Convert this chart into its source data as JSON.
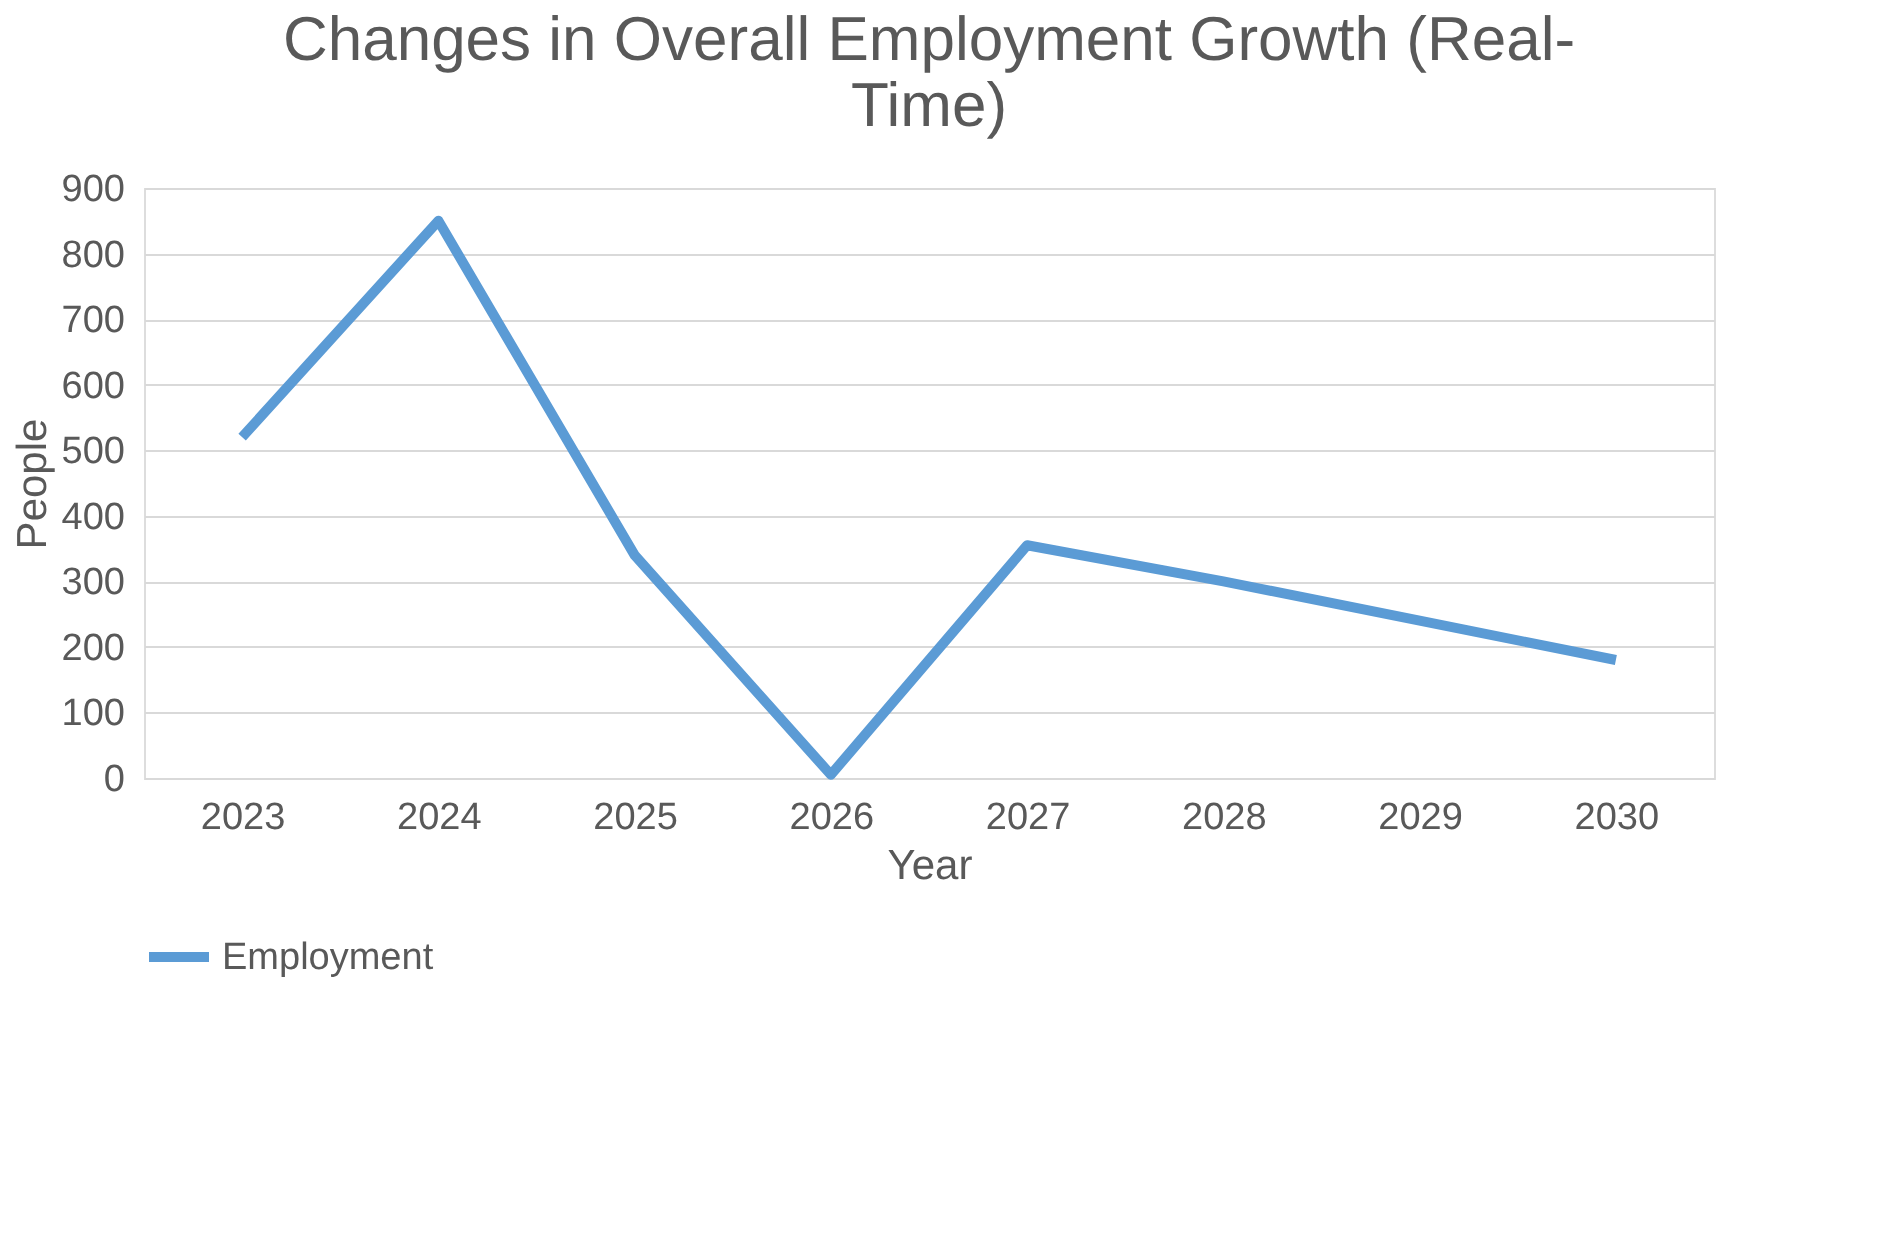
{
  "chart_data": {
    "type": "line",
    "title": "Changes in Overall Employment Growth (Real-Time)",
    "xlabel": "Year",
    "ylabel": "People",
    "categories": [
      "2023",
      "2024",
      "2025",
      "2026",
      "2027",
      "2028",
      "2029",
      "2030"
    ],
    "series": [
      {
        "name": "Employment",
        "color": "#5b9bd5",
        "values": [
          520,
          850,
          340,
          5,
          355,
          300,
          240,
          180
        ]
      }
    ],
    "ylim": [
      0,
      900
    ],
    "yticks": [
      0,
      100,
      200,
      300,
      400,
      500,
      600,
      700,
      800,
      900
    ],
    "grid": "y",
    "legend": "bottom",
    "marker": "none",
    "line_style": "solid"
  }
}
